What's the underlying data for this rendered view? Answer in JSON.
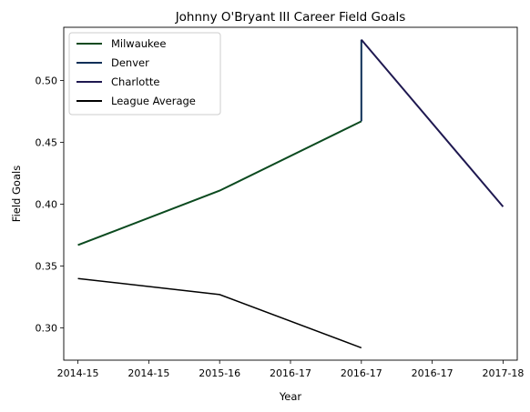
{
  "chart_data": {
    "type": "line",
    "title": "Johnny O'Bryant III Career Field Goals",
    "xlabel": "Year",
    "ylabel": "Field Goals",
    "xlim": [
      -0.1,
      3.1
    ],
    "ylim": [
      0.274,
      0.543
    ],
    "x_ticks": [
      {
        "x": 0,
        "label": "2014-15"
      },
      {
        "x": 0.5,
        "label": "2014-15"
      },
      {
        "x": 1,
        "label": "2015-16"
      },
      {
        "x": 1.5,
        "label": "2016-17"
      },
      {
        "x": 2,
        "label": "2016-17"
      },
      {
        "x": 2.5,
        "label": "2016-17"
      },
      {
        "x": 3,
        "label": "2017-18"
      }
    ],
    "y_ticks": [
      0.3,
      0.35,
      0.4,
      0.45,
      0.5
    ],
    "y_tick_labels": [
      "0.30",
      "0.35",
      "0.40",
      "0.45",
      "0.50"
    ],
    "legend_position": "top-left",
    "series": [
      {
        "name": "Milwaukee",
        "color": "#0b4a1f",
        "width": 2,
        "x": [
          0,
          1,
          2
        ],
        "y": [
          0.367,
          0.411,
          0.467
        ]
      },
      {
        "name": "Denver",
        "color": "#0d2f57",
        "width": 2,
        "x": [
          2,
          2
        ],
        "y": [
          0.467,
          0.533
        ]
      },
      {
        "name": "Charlotte",
        "color": "#1e1850",
        "width": 2,
        "x": [
          2,
          3
        ],
        "y": [
          0.533,
          0.398
        ]
      },
      {
        "name": "League Average",
        "color": "#000000",
        "width": 1.5,
        "x": [
          0,
          1,
          2
        ],
        "y": [
          0.34,
          0.327,
          0.284
        ]
      }
    ]
  }
}
